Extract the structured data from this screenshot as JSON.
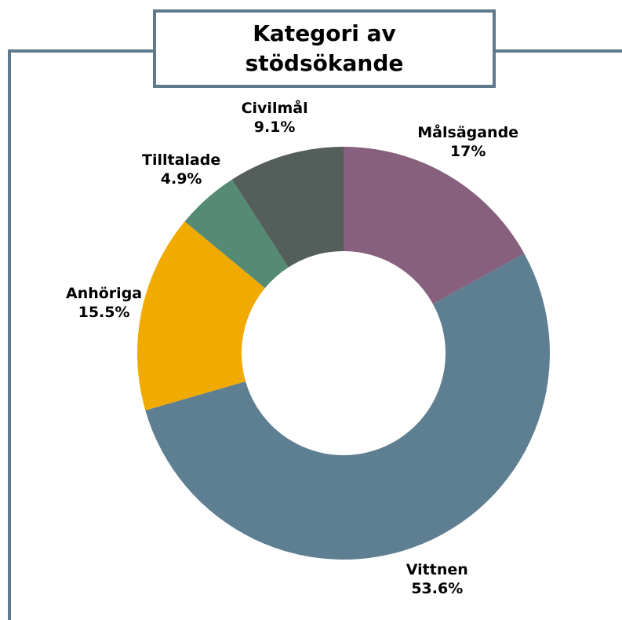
{
  "chart_data": {
    "type": "donut",
    "title": "Kategori av stödsökande",
    "categories": [
      "Målsägande",
      "Vittnen",
      "Anhöriga",
      "Tilltalade",
      "Civilmål"
    ],
    "values": [
      17,
      53.6,
      15.5,
      4.9,
      9.1
    ],
    "value_labels": [
      "17%",
      "53.6%",
      "15.5%",
      "4.9%",
      "9.1%"
    ],
    "colors": [
      "#86607c",
      "#5e7f91",
      "#f0aa00",
      "#558a74",
      "#545e5a"
    ]
  }
}
